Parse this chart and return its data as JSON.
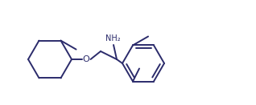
{
  "bg_color": "#ffffff",
  "line_color": "#2b2b6b",
  "line_width": 1.4,
  "font_size": 7.5,
  "figsize": [
    3.18,
    1.31
  ],
  "dpi": 100
}
